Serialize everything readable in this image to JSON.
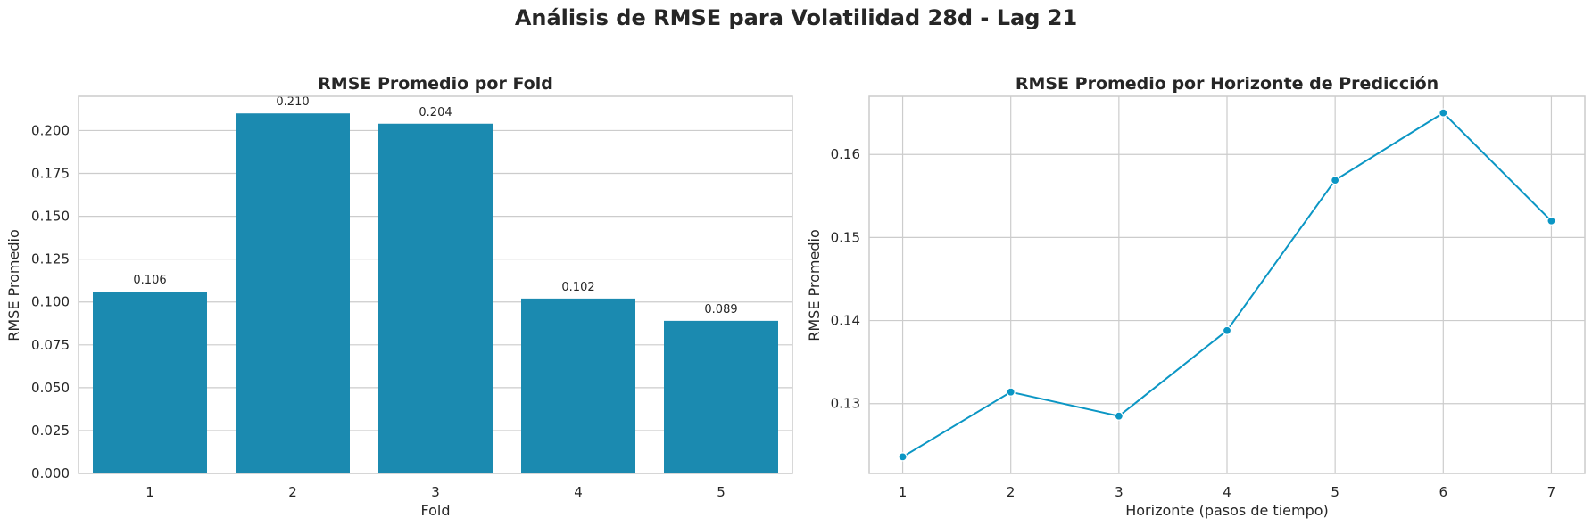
{
  "figure": {
    "suptitle": "Análisis de RMSE para Volatilidad 28d - Lag 21"
  },
  "colors": {
    "bar": "#1b8ab0",
    "line": "#0b96c4",
    "grid": "#cccccc",
    "axis": "#cccccc",
    "text": "#262626"
  },
  "chart_data": [
    {
      "type": "bar",
      "title": "RMSE Promedio por Fold",
      "xlabel": "Fold",
      "ylabel": "RMSE Promedio",
      "categories": [
        "1",
        "2",
        "3",
        "4",
        "5"
      ],
      "values": [
        0.106,
        0.21,
        0.204,
        0.102,
        0.089
      ],
      "data_labels": [
        "0.106",
        "0.210",
        "0.204",
        "0.102",
        "0.089"
      ],
      "ylim": [
        0,
        0.22
      ],
      "yticks": [
        0.0,
        0.025,
        0.05,
        0.075,
        0.1,
        0.125,
        0.15,
        0.175,
        0.2
      ],
      "ytick_labels": [
        "0.000",
        "0.025",
        "0.050",
        "0.075",
        "0.100",
        "0.125",
        "0.150",
        "0.175",
        "0.200"
      ],
      "grid": true
    },
    {
      "type": "line",
      "title": "RMSE Promedio por Horizonte de Predicción",
      "xlabel": "Horizonte (pasos de tiempo)",
      "ylabel": "RMSE Promedio",
      "x": [
        1,
        2,
        3,
        4,
        5,
        6,
        7
      ],
      "y": [
        0.1236,
        0.1314,
        0.1285,
        0.1388,
        0.1569,
        0.165,
        0.152
      ],
      "xlim": [
        0.69,
        7.31
      ],
      "ylim": [
        0.1216,
        0.167
      ],
      "xticks": [
        1,
        2,
        3,
        4,
        5,
        6,
        7
      ],
      "xtick_labels": [
        "1",
        "2",
        "3",
        "4",
        "5",
        "6",
        "7"
      ],
      "yticks": [
        0.13,
        0.14,
        0.15,
        0.16
      ],
      "ytick_labels": [
        "0.13",
        "0.14",
        "0.15",
        "0.16"
      ],
      "markers": true,
      "grid": true
    }
  ]
}
